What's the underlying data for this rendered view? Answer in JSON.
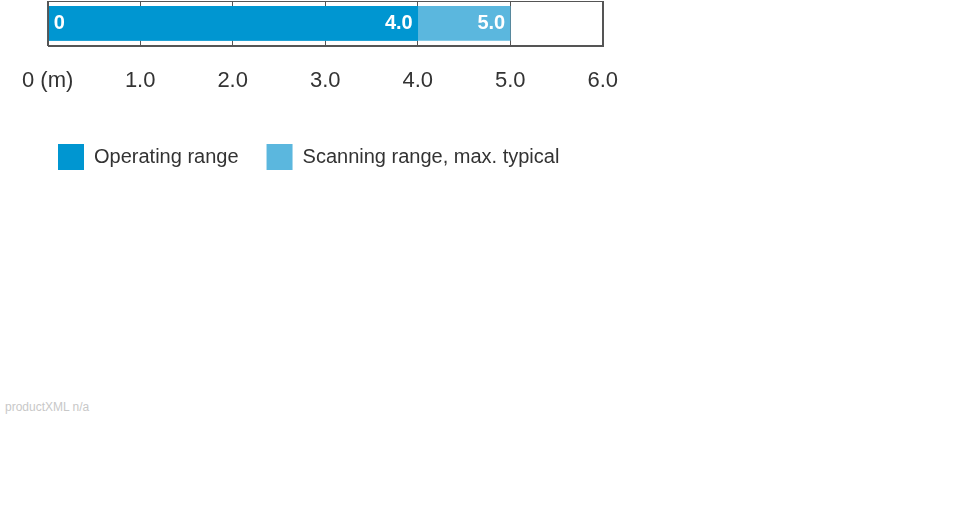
{
  "chart_data": {
    "type": "bar",
    "orientation": "horizontal",
    "stacked": false,
    "series": [
      {
        "name": "Operating range",
        "color": "#0096d1",
        "values": [
          4
        ],
        "value_labels": [
          "4.0"
        ]
      },
      {
        "name": "Scanning range, max. typical",
        "color": "#5bb7de",
        "values": [
          5
        ],
        "value_labels": [
          "5.0"
        ]
      }
    ],
    "xlim": [
      0,
      6
    ],
    "xticks": [
      {
        "value": 0,
        "label": "0 (m)"
      },
      {
        "value": 1,
        "label": "1.0"
      },
      {
        "value": 2,
        "label": "2.0"
      },
      {
        "value": 3,
        "label": "3.0"
      },
      {
        "value": 4,
        "label": "4.0"
      },
      {
        "value": 5,
        "label": "5.0"
      },
      {
        "value": 6,
        "label": "6.0"
      }
    ],
    "grid": true,
    "data_labels": true,
    "legend": "bottom-left",
    "tick_labels": "x",
    "annotations": [
      {
        "text": "0",
        "x": 0
      }
    ],
    "footnote": "productXML n/a"
  }
}
